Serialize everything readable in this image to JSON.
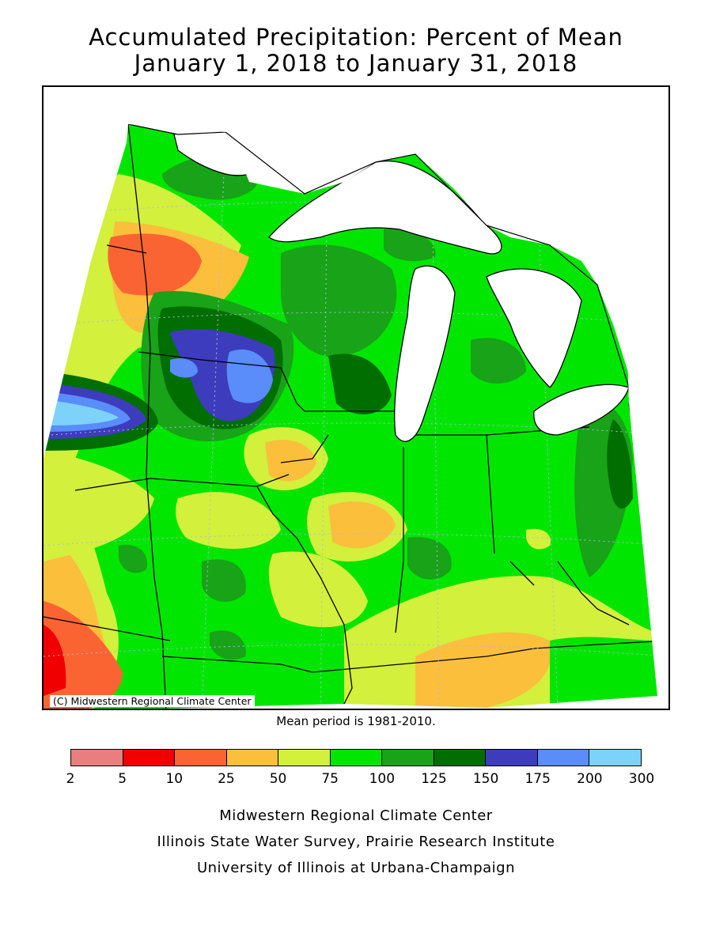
{
  "header": {
    "title_line1": "Accumulated Precipitation: Percent of Mean",
    "title_line2": "January 1, 2018 to January 31, 2018"
  },
  "map": {
    "copyright": "(C) Midwestern Regional Climate Center",
    "mean_period": "Mean period is 1981-2010."
  },
  "legend": {
    "colors": [
      "#e87e7e",
      "#f00000",
      "#fa6432",
      "#fbbf3c",
      "#d2f03c",
      "#00e600",
      "#18a318",
      "#006e00",
      "#3c3cbc",
      "#5a8cfa",
      "#7dd2fa"
    ],
    "ticks": [
      "2",
      "5",
      "10",
      "25",
      "50",
      "75",
      "100",
      "125",
      "150",
      "175",
      "200",
      "300"
    ]
  },
  "footer": {
    "line1": "Midwestern Regional Climate Center",
    "line2": "Illinois State Water Survey, Prairie Research Institute",
    "line3": "University of Illinois at Urbana-Champaign"
  }
}
